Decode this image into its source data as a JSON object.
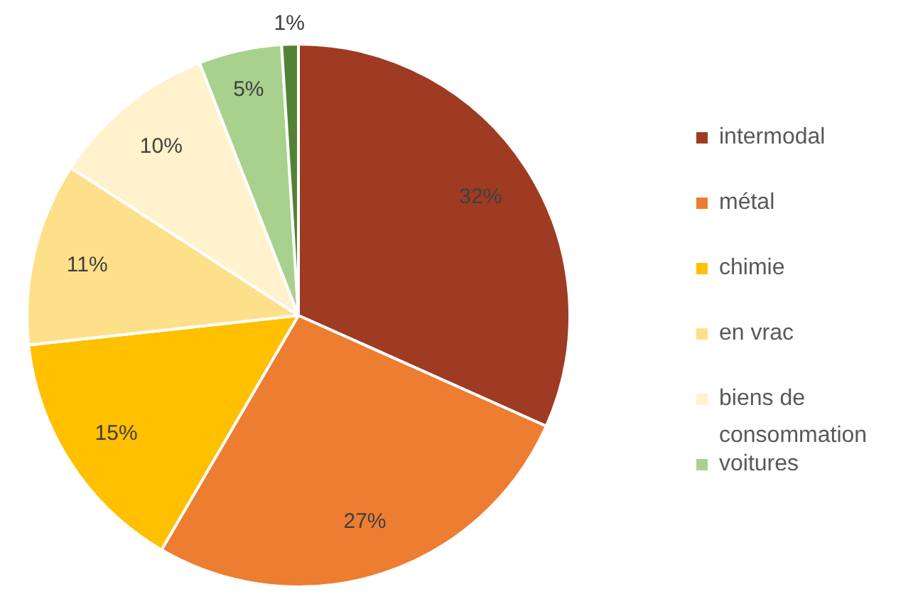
{
  "chart_data": {
    "type": "pie",
    "categories": [
      "intermodal",
      "métal",
      "chimie",
      "en vrac",
      "biens de consommation",
      "voitures",
      null
    ],
    "values": [
      32,
      27,
      15,
      11,
      10,
      5,
      1
    ],
    "value_labels": [
      "32%",
      "27%",
      "15%",
      "11%",
      "10%",
      "5%",
      "1%"
    ],
    "colors": [
      "#9e3b22",
      "#ed7d31",
      "#ffc000",
      "#ffe08a",
      "#fff2cc",
      "#a9d18e",
      "#548235"
    ],
    "legend": "right"
  }
}
